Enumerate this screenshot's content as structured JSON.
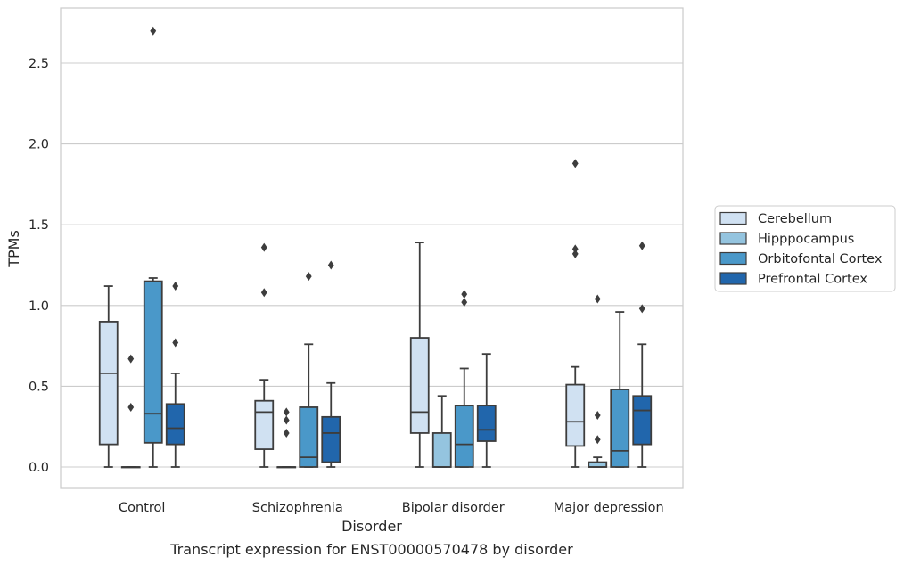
{
  "caption": "Transcript expression for ENST00000570478 by disorder",
  "chart_data": {
    "type": "box",
    "title": "",
    "xlabel": "Disorder",
    "ylabel": "TPMs",
    "categories": [
      "Control",
      "Schizophrenia",
      "Bipolar disorder",
      "Major depression"
    ],
    "ylim": [
      -0.13,
      2.85
    ],
    "yticks": [
      "0.0",
      "0.5",
      "1.0",
      "1.5",
      "2.0",
      "2.5"
    ],
    "grid": "horizontal",
    "legend_position": "outside-right",
    "series": [
      {
        "name": "Cerebellum",
        "color": "#d0e1f2",
        "boxes": [
          {
            "whislo": 0.0,
            "q1": 0.14,
            "med": 0.58,
            "q3": 0.9,
            "whishi": 1.12,
            "fliers": []
          },
          {
            "whislo": 0.0,
            "q1": 0.11,
            "med": 0.34,
            "q3": 0.41,
            "whishi": 0.54,
            "fliers": [
              1.08,
              1.36
            ]
          },
          {
            "whislo": 0.0,
            "q1": 0.21,
            "med": 0.34,
            "q3": 0.8,
            "whishi": 1.39,
            "fliers": []
          },
          {
            "whislo": 0.0,
            "q1": 0.13,
            "med": 0.28,
            "q3": 0.51,
            "whishi": 0.62,
            "fliers": [
              1.32,
              1.35,
              1.88
            ]
          }
        ]
      },
      {
        "name": "Hipppocampus",
        "color": "#94c4df",
        "boxes": [
          {
            "whislo": 0.0,
            "q1": 0.0,
            "med": 0.0,
            "q3": 0.0,
            "whishi": 0.0,
            "fliers": [
              0.37,
              0.67
            ]
          },
          {
            "whislo": 0.0,
            "q1": 0.0,
            "med": 0.0,
            "q3": 0.0,
            "whishi": 0.0,
            "fliers": [
              0.21,
              0.29,
              0.34
            ]
          },
          {
            "whislo": 0.0,
            "q1": 0.0,
            "med": 0.0,
            "q3": 0.21,
            "whishi": 0.44,
            "fliers": []
          },
          {
            "whislo": 0.0,
            "q1": 0.0,
            "med": 0.0,
            "q3": 0.03,
            "whishi": 0.06,
            "fliers": [
              0.17,
              0.32,
              1.04
            ]
          }
        ]
      },
      {
        "name": "Orbitofontal Cortex",
        "color": "#4a98c9",
        "boxes": [
          {
            "whislo": 0.0,
            "q1": 0.15,
            "med": 0.33,
            "q3": 1.15,
            "whishi": 1.17,
            "fliers": [
              2.7
            ]
          },
          {
            "whislo": 0.0,
            "q1": 0.0,
            "med": 0.06,
            "q3": 0.37,
            "whishi": 0.76,
            "fliers": [
              1.18
            ]
          },
          {
            "whislo": 0.0,
            "q1": 0.0,
            "med": 0.14,
            "q3": 0.38,
            "whishi": 0.61,
            "fliers": [
              1.02,
              1.07
            ]
          },
          {
            "whislo": 0.0,
            "q1": 0.0,
            "med": 0.1,
            "q3": 0.48,
            "whishi": 0.96,
            "fliers": []
          }
        ]
      },
      {
        "name": "Prefrontal Cortex",
        "color": "#2166ac",
        "boxes": [
          {
            "whislo": 0.0,
            "q1": 0.14,
            "med": 0.24,
            "q3": 0.39,
            "whishi": 0.58,
            "fliers": [
              0.77,
              1.12
            ]
          },
          {
            "whislo": 0.0,
            "q1": 0.03,
            "med": 0.21,
            "q3": 0.31,
            "whishi": 0.52,
            "fliers": [
              1.25
            ]
          },
          {
            "whislo": 0.0,
            "q1": 0.16,
            "med": 0.23,
            "q3": 0.38,
            "whishi": 0.7,
            "fliers": []
          },
          {
            "whislo": 0.0,
            "q1": 0.14,
            "med": 0.35,
            "q3": 0.44,
            "whishi": 0.76,
            "fliers": [
              0.98,
              1.37
            ]
          }
        ]
      }
    ]
  }
}
